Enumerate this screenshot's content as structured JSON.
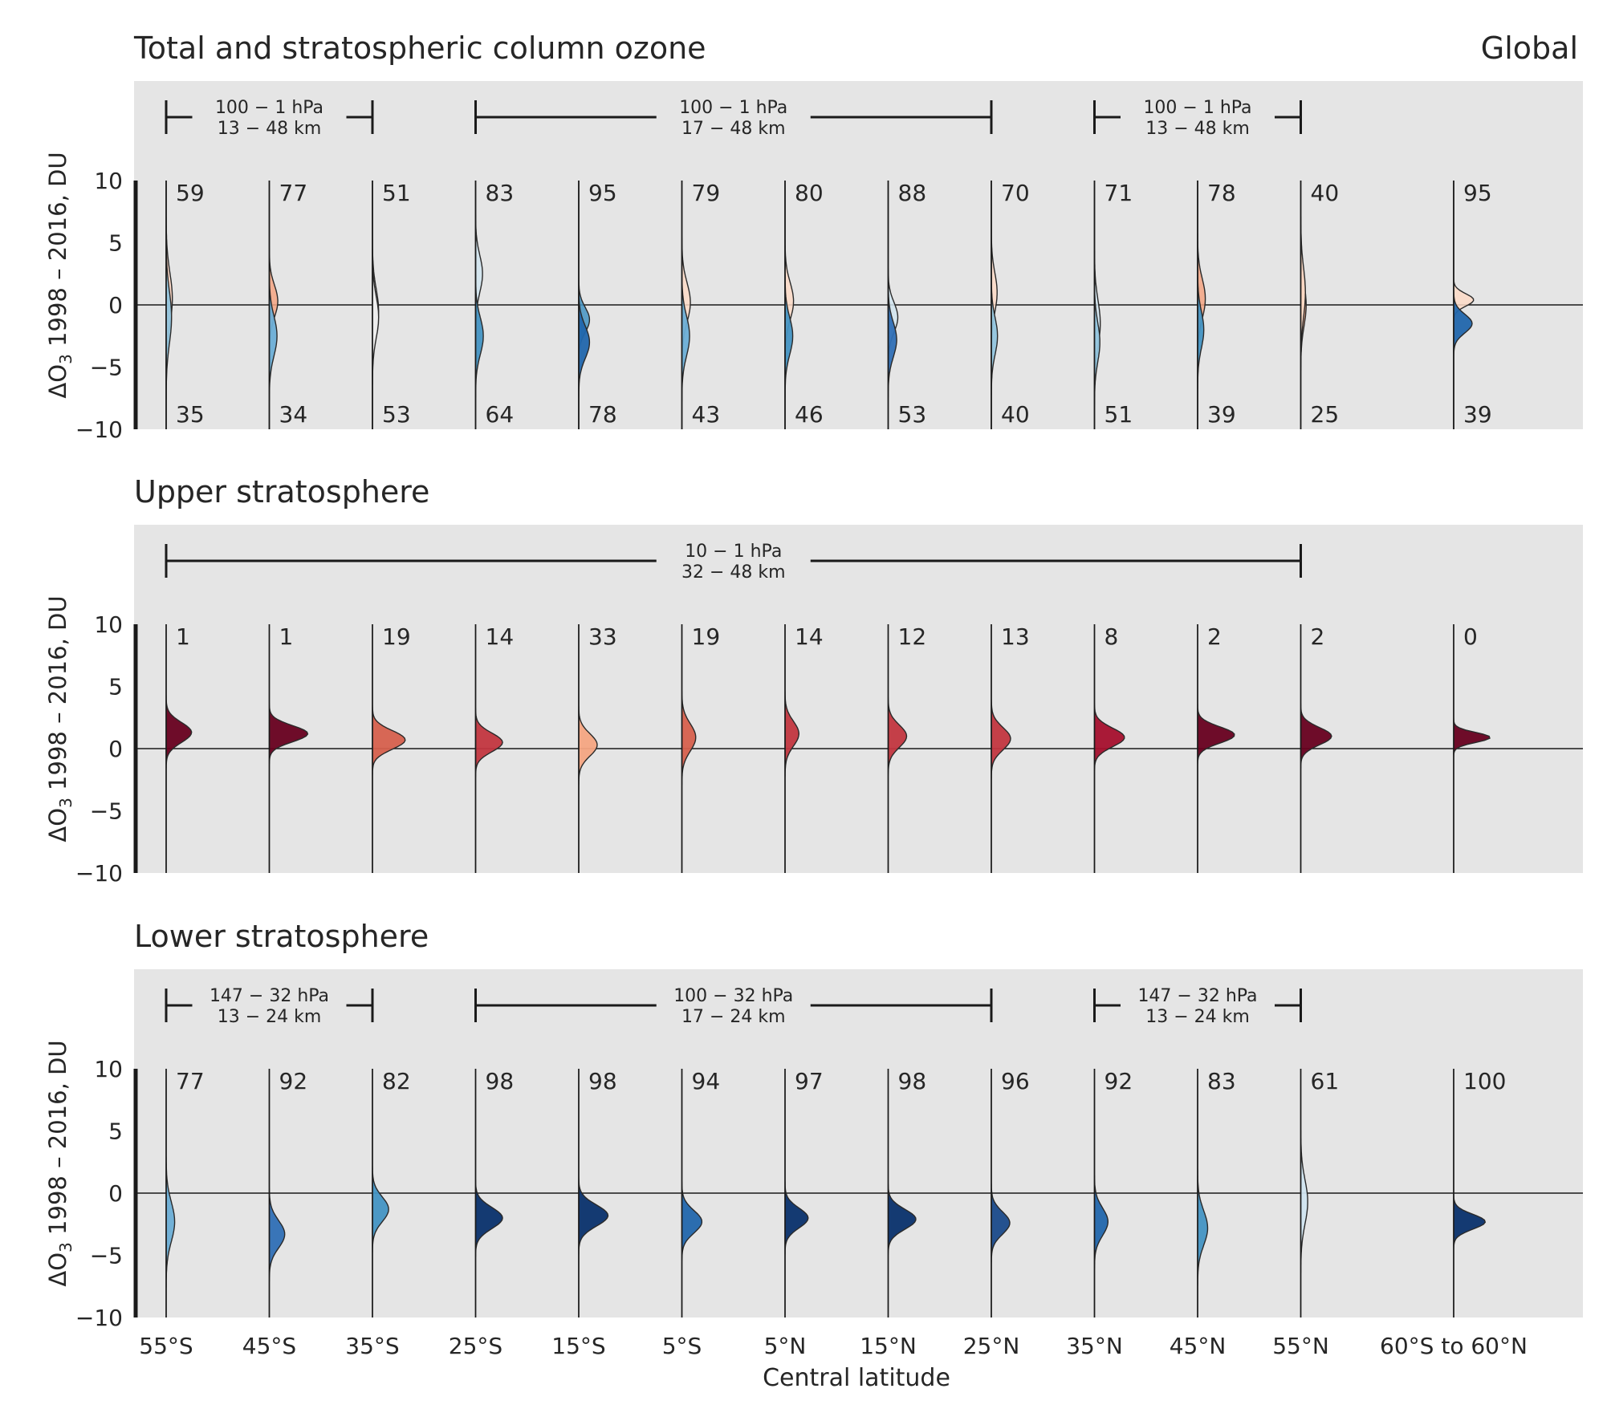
{
  "figure": {
    "x_label": "Central latitude",
    "global_label": "Global"
  },
  "chart_data": [
    {
      "type": "violin",
      "title": "Total and stratospheric column ozone",
      "ylabel_prefix": "ΔO",
      "ylabel_sub": "3",
      "ylabel_rest": " 1998 – 2016, DU",
      "ylim": [
        -10,
        10
      ],
      "yticks": [
        "10",
        "5",
        "0",
        "−5",
        "−10"
      ],
      "categories": [
        "55°S",
        "45°S",
        "35°S",
        "25°S",
        "15°S",
        "5°S",
        "5°N",
        "15°N",
        "25°N",
        "35°N",
        "45°N",
        "55°N",
        "60°S to 60°N"
      ],
      "ranges": [
        {
          "from": "55°S",
          "to": "35°S",
          "line1": "100 − 1 hPa",
          "line2": "13 − 48 km"
        },
        {
          "from": "25°S",
          "to": "25°N",
          "line1": "100 − 1 hPa",
          "line2": "17 − 48 km"
        },
        {
          "from": "35°N",
          "to": "55°N",
          "line1": "100 − 1 hPa",
          "line2": "13 − 48 km"
        }
      ],
      "pct_positive": [
        "59",
        "77",
        "51",
        "83",
        "95",
        "79",
        "80",
        "88",
        "70",
        "71",
        "78",
        "40",
        "95"
      ],
      "pct_negative": [
        "35",
        "34",
        "53",
        "64",
        "78",
        "43",
        "46",
        "53",
        "40",
        "51",
        "39",
        "25",
        "39"
      ],
      "series": [
        {
          "name": "",
          "modes": [
            0.5,
            0.3,
            -0.5,
            2.5,
            -1.2,
            0.2,
            0.3,
            -1.0,
            1.0,
            -1.5,
            0.5,
            0.0,
            0.4
          ],
          "widths": [
            4.2,
            2.6,
            3.6,
            3.0,
            2.0,
            3.2,
            3.0,
            2.4,
            3.2,
            3.8,
            3.2,
            3.4,
            1.0
          ],
          "amps": [
            0.16,
            0.22,
            0.16,
            0.18,
            0.28,
            0.22,
            0.22,
            0.25,
            0.15,
            0.15,
            0.2,
            0.14,
            0.52
          ],
          "colors": [
            "#fbd4c0",
            "#f4a582",
            "#eeeeee",
            "#d1e5f0",
            "#4393c3",
            "#fddbc7",
            "#fddbc7",
            "#d1e5f0",
            "#fddbc7",
            "#d1e5f0",
            "#f4a582",
            "#f4a582",
            "#fddbc7"
          ]
        },
        {
          "name": "",
          "modes": [
            -1.0,
            -2.5,
            -1.0,
            -2.5,
            -3.0,
            -2.5,
            -2.5,
            -2.8,
            -2.5,
            -3.0,
            -2.0,
            1.0,
            -1.5
          ],
          "widths": [
            4.2,
            3.2,
            3.4,
            3.0,
            2.6,
            3.2,
            3.0,
            2.8,
            3.0,
            3.2,
            3.0,
            4.0,
            1.5
          ],
          "amps": [
            0.14,
            0.2,
            0.16,
            0.2,
            0.28,
            0.2,
            0.2,
            0.22,
            0.16,
            0.14,
            0.16,
            0.12,
            0.48
          ],
          "colors": [
            "#92c5de",
            "#6baed6",
            "#eeeeee",
            "#4393c3",
            "#2166ac",
            "#6baed6",
            "#4393c3",
            "#2f6fb5",
            "#92c5de",
            "#92c5de",
            "#4393c3",
            "#fddbc7",
            "#2166ac"
          ]
        }
      ]
    },
    {
      "type": "violin",
      "title": "Upper stratosphere",
      "ylabel_prefix": "ΔO",
      "ylabel_sub": "3",
      "ylabel_rest": " 1998 – 2016, DU",
      "ylim": [
        -10,
        10
      ],
      "yticks": [
        "10",
        "5",
        "0",
        "−5",
        "−10"
      ],
      "categories": [
        "55°S",
        "45°S",
        "35°S",
        "25°S",
        "15°S",
        "5°S",
        "5°N",
        "15°N",
        "25°N",
        "35°N",
        "45°N",
        "55°N",
        "60°S to 60°N"
      ],
      "ranges": [
        {
          "from": "55°S",
          "to": "55°N",
          "line1": "10 − 1 hPa",
          "line2": "32 − 48 km"
        }
      ],
      "pct_positive": [
        "1",
        "1",
        "19",
        "14",
        "33",
        "19",
        "14",
        "12",
        "13",
        "8",
        "2",
        "2",
        "0"
      ],
      "pct_negative": [],
      "series": [
        {
          "name": "",
          "modes": [
            1.3,
            1.2,
            0.7,
            0.5,
            0.3,
            0.9,
            1.2,
            1.0,
            0.8,
            0.9,
            1.1,
            1.0,
            0.9
          ],
          "widths": [
            1.6,
            1.3,
            1.5,
            1.5,
            1.8,
            2.2,
            2.0,
            1.8,
            1.8,
            1.5,
            1.3,
            1.4,
            0.8
          ],
          "amps": [
            0.66,
            1.0,
            0.85,
            0.7,
            0.48,
            0.36,
            0.36,
            0.48,
            0.5,
            0.78,
            0.96,
            0.8,
            0.95
          ],
          "colors": [
            "#67001f",
            "#67001f",
            "#d6604d",
            "#c2363f",
            "#f4a582",
            "#d6604d",
            "#c2363f",
            "#c2363f",
            "#c2363f",
            "#a50f2d",
            "#67001f",
            "#67001f",
            "#67001f"
          ]
        }
      ]
    },
    {
      "type": "violin",
      "title": "Lower stratosphere",
      "ylabel_prefix": "ΔO",
      "ylabel_sub": "3",
      "ylabel_rest": " 1998 – 2016, DU",
      "ylim": [
        -10,
        10
      ],
      "yticks": [
        "10",
        "5",
        "0",
        "−5",
        "−10"
      ],
      "categories": [
        "55°S",
        "45°S",
        "35°S",
        "25°S",
        "15°S",
        "5°S",
        "5°N",
        "15°N",
        "25°N",
        "35°N",
        "45°N",
        "55°N",
        "60°S to 60°N"
      ],
      "ranges": [
        {
          "from": "55°S",
          "to": "35°S",
          "line1": "147 − 32 hPa",
          "line2": "13 − 24 km"
        },
        {
          "from": "25°S",
          "to": "25°N",
          "line1": "100 − 32 hPa",
          "line2": "17 − 24 km"
        },
        {
          "from": "35°N",
          "to": "55°N",
          "line1": "147 − 32 hPa",
          "line2": "13 − 24 km"
        }
      ],
      "pct_positive": [
        "77",
        "92",
        "82",
        "98",
        "98",
        "94",
        "97",
        "98",
        "96",
        "92",
        "83",
        "61",
        "100"
      ],
      "pct_negative": [],
      "series": [
        {
          "name": "",
          "modes": [
            -2.3,
            -3.3,
            -1.3,
            -2.0,
            -1.8,
            -2.3,
            -2.0,
            -2.1,
            -2.4,
            -2.3,
            -2.8,
            -0.7,
            -2.3
          ],
          "widths": [
            3.2,
            2.2,
            2.0,
            1.7,
            1.7,
            1.8,
            1.6,
            1.6,
            1.8,
            2.2,
            2.8,
            3.6,
            1.2
          ],
          "amps": [
            0.22,
            0.4,
            0.42,
            0.7,
            0.76,
            0.52,
            0.6,
            0.72,
            0.48,
            0.35,
            0.26,
            0.18,
            0.82
          ],
          "colors": [
            "#6baed6",
            "#2f6fb5",
            "#4393c3",
            "#08306b",
            "#08306b",
            "#2166ac",
            "#08306b",
            "#08306b",
            "#1a4a8a",
            "#2166ac",
            "#4393c3",
            "#d1e5f0",
            "#08306b"
          ]
        }
      ]
    }
  ]
}
